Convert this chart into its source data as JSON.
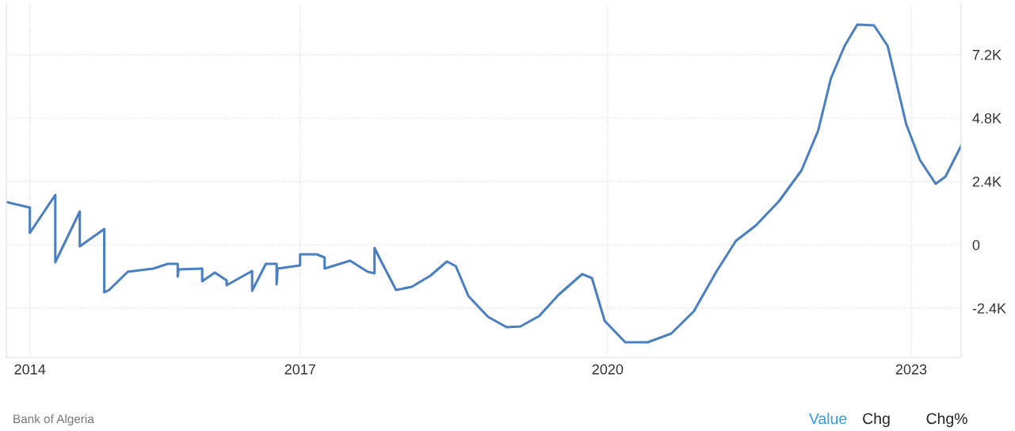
{
  "chart_data": {
    "type": "line",
    "color": "#4a7fc1",
    "x": [
      2013.76,
      2014.0,
      2014.0,
      2014.26,
      2014.26,
      2014.51,
      2014.51,
      2014.76,
      2014.76,
      2014.81,
      2015.0,
      2015.26,
      2015.41,
      2015.51,
      2015.51,
      2015.52,
      2015.76,
      2015.76,
      2015.89,
      2016.01,
      2016.01,
      2016.27,
      2016.27,
      2016.41,
      2016.52,
      2016.52,
      2016.53,
      2016.76,
      2016.76,
      2016.93,
      2017.01,
      2017.01,
      2017.27,
      2017.45,
      2017.52,
      2017.52,
      2017.58,
      2017.74,
      2017.9,
      2018.09,
      2018.26,
      2018.35,
      2018.48,
      2018.68,
      2018.87,
      2019.01,
      2019.2,
      2019.4,
      2019.64,
      2019.74,
      2019.87,
      2020.08,
      2020.31,
      2020.55,
      2020.78,
      2021.01,
      2021.21,
      2021.41,
      2021.65,
      2021.88,
      2022.05,
      2022.18,
      2022.32,
      2022.45,
      2022.62,
      2022.76,
      2022.95,
      2023.09,
      2023.25,
      2023.35,
      2023.51
    ],
    "values": [
      1620,
      1410,
      450,
      1890,
      -660,
      1260,
      -60,
      600,
      -1800,
      -1710,
      -1020,
      -900,
      -720,
      -720,
      -1200,
      -930,
      -900,
      -1380,
      -1050,
      -1350,
      -1530,
      -990,
      -1740,
      -720,
      -720,
      -1500,
      -900,
      -780,
      -360,
      -360,
      -480,
      -900,
      -600,
      -1020,
      -1080,
      -120,
      -570,
      -1710,
      -1590,
      -1170,
      -630,
      -810,
      -1950,
      -2730,
      -3120,
      -3090,
      -2700,
      -1890,
      -1110,
      -1260,
      -2880,
      -3690,
      -3690,
      -3360,
      -2520,
      -1020,
      150,
      720,
      1650,
      2820,
      4320,
      6300,
      7530,
      8340,
      8310,
      7530,
      4560,
      3210,
      2310,
      2580,
      3750
    ],
    "xlim": [
      2013.76,
      2023.51
    ],
    "xticks": [
      {
        "value": 2014.0,
        "label": "2014"
      },
      {
        "value": 2016.76,
        "label": "2017"
      },
      {
        "value": 2019.9,
        "label": "2020"
      },
      {
        "value": 2023.0,
        "label": "2023"
      }
    ],
    "ylim": [
      -4260,
      9150
    ],
    "yticks": [
      {
        "value": -2400,
        "label": "-2.4K"
      },
      0,
      {
        "value": 2400,
        "label": "2.4K"
      },
      {
        "value": 4800,
        "label": "4.8K"
      },
      {
        "value": 7200,
        "label": "7.2K"
      }
    ],
    "grid": true,
    "legend": false,
    "marker": "none",
    "line_style": "solid",
    "annotations": [
      "Bank of Algeria",
      "Value",
      "Chg",
      "Chg%"
    ]
  }
}
